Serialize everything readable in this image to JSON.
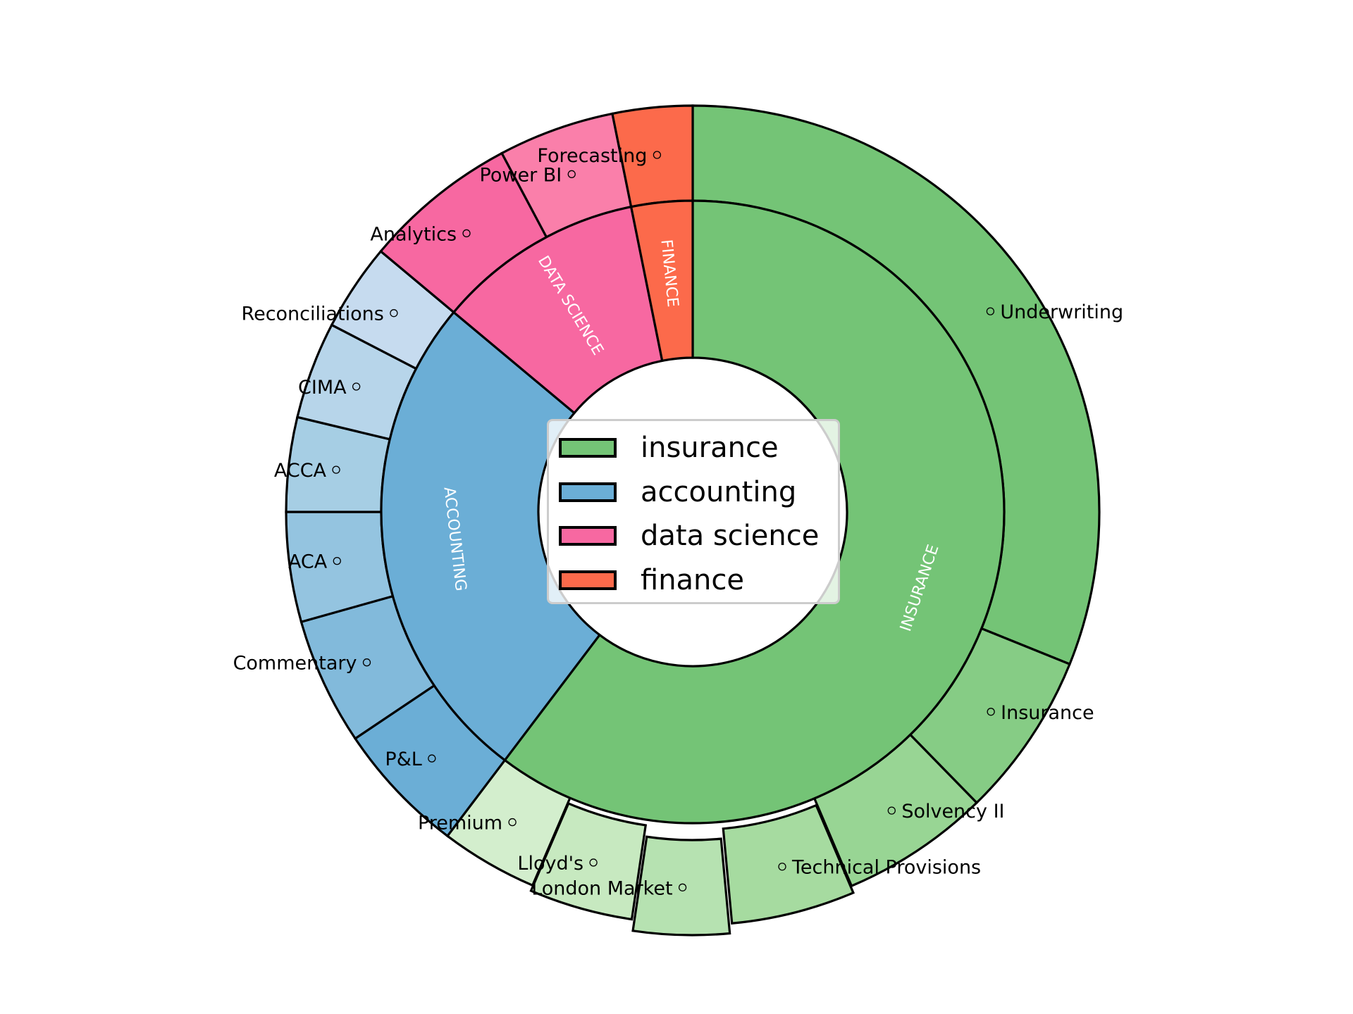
{
  "chart_data": {
    "type": "pie",
    "subtype": "nested-donut",
    "title": "",
    "start_angle_deg": 90,
    "direction": "clockwise",
    "unit": "degrees of arc (approx. read from figure)",
    "legend": {
      "position": "center",
      "entries": [
        "insurance",
        "accounting",
        "data science",
        "finance"
      ]
    },
    "categories": [
      {
        "name": "insurance",
        "label": "INSURANCE",
        "color": "#74c476",
        "value": 217.1,
        "children": [
          {
            "label": "Underwriting",
            "value": 112.0,
            "color": "#74c476",
            "explode": 0
          },
          {
            "label": "Insurance",
            "value": 23.7,
            "color": "#86cc85",
            "explode": 0
          },
          {
            "label": "Solvency II",
            "value": 21.3,
            "color": "#98d594",
            "explode": 0
          },
          {
            "label": "Technical Provisions",
            "value": 17.7,
            "color": "#a6dba0",
            "explode": 10
          },
          {
            "label": "London Market",
            "value": 13.7,
            "color": "#b6e2b1",
            "explode": 24
          },
          {
            "label": "Lloyd's",
            "value": 14.8,
            "color": "#c7e9c0",
            "explode": 8
          },
          {
            "label": "Premium",
            "value": 13.9,
            "color": "#d3eecd",
            "explode": 0
          }
        ]
      },
      {
        "name": "accounting",
        "label": "ACCOUNTING",
        "color": "#6baed6",
        "value": 92.8,
        "children": [
          {
            "label": "P&L",
            "value": 19.0,
            "color": "#6baed6",
            "explode": 0
          },
          {
            "label": "Commentary",
            "value": 18.2,
            "color": "#82badb",
            "explode": 0
          },
          {
            "label": "ACA",
            "value": 15.7,
            "color": "#94c4e0",
            "explode": 0
          },
          {
            "label": "ACCA",
            "value": 13.5,
            "color": "#a6cee4",
            "explode": 0
          },
          {
            "label": "CIMA",
            "value": 13.9,
            "color": "#b7d5ea",
            "explode": 0
          },
          {
            "label": "Reconciliations",
            "value": 12.5,
            "color": "#c6dbef",
            "explode": 0
          }
        ]
      },
      {
        "name": "data science",
        "label": "DATA SCIENCE",
        "color": "#f768a1",
        "value": 38.7,
        "children": [
          {
            "label": "Analytics",
            "value": 22.1,
            "color": "#f768a1",
            "explode": 0
          },
          {
            "label": "Power BI",
            "value": 16.6,
            "color": "#fa7faa",
            "explode": 0
          }
        ]
      },
      {
        "name": "finance",
        "label": "FINANCE",
        "color": "#fc6a4b",
        "value": 11.4,
        "children": [
          {
            "label": "Forecasting",
            "value": 11.4,
            "color": "#fc6a4b",
            "explode": 0
          }
        ]
      }
    ],
    "layout": {
      "center": [
        983,
        727
      ],
      "hole_radius": 219,
      "inner_ring_outer_radius": 442,
      "outer_ring_outer_radius": 577
    }
  },
  "legend": {
    "items": [
      {
        "label": "insurance",
        "color": "#74c476"
      },
      {
        "label": "accounting",
        "color": "#6baed6"
      },
      {
        "label": "data science",
        "color": "#f768a1"
      },
      {
        "label": "finance",
        "color": "#fc6a4b"
      }
    ]
  }
}
